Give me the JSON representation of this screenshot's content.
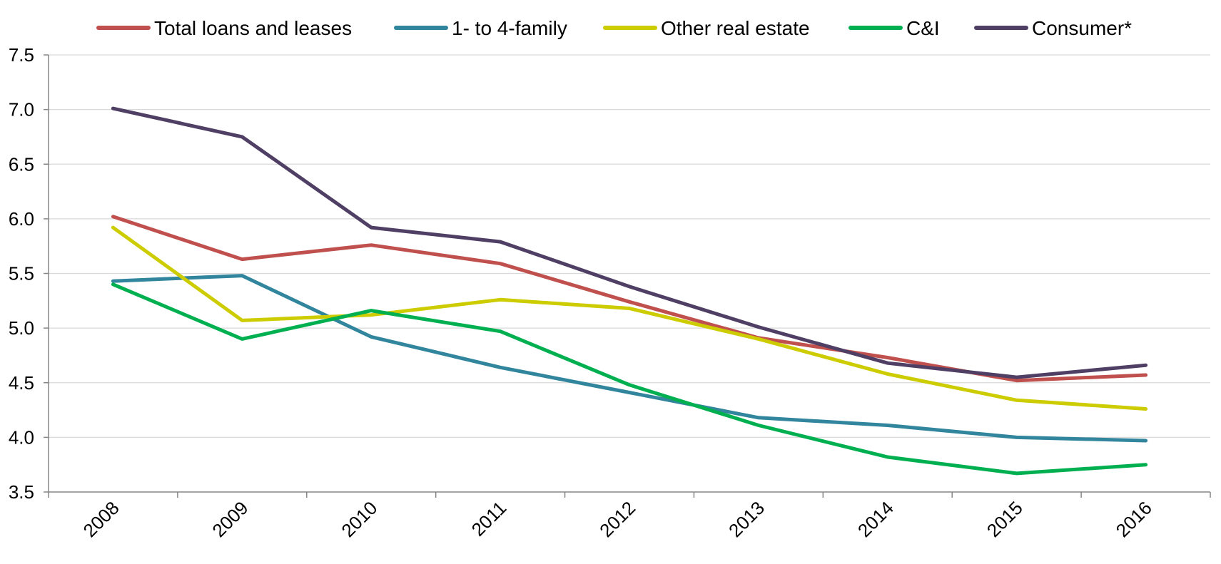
{
  "chart_data": {
    "type": "line",
    "title": "",
    "xlabel": "",
    "ylabel": "",
    "categories": [
      "2008",
      "2009",
      "2010",
      "2011",
      "2012",
      "2013",
      "2014",
      "2015",
      "2016"
    ],
    "ylim": [
      3.5,
      7.5
    ],
    "yticks": [
      "3.5",
      "4.0",
      "4.5",
      "5.0",
      "5.5",
      "6.0",
      "6.5",
      "7.0",
      "7.5"
    ],
    "grid": "horizontal",
    "legend_position": "top",
    "series": [
      {
        "name": "Total loans and leases",
        "color": "#c0504d",
        "values": [
          6.02,
          5.63,
          5.76,
          5.59,
          5.24,
          4.91,
          4.73,
          4.52,
          4.57
        ]
      },
      {
        "name": "1- to 4-family",
        "color": "#31859c",
        "values": [
          5.43,
          5.48,
          4.92,
          4.64,
          4.41,
          4.18,
          4.11,
          4.0,
          3.97
        ]
      },
      {
        "name": "Other real estate",
        "color": "#cccc00",
        "values": [
          5.92,
          5.07,
          5.12,
          5.26,
          5.18,
          4.9,
          4.58,
          4.34,
          4.26
        ]
      },
      {
        "name": "C&I",
        "color": "#00b050",
        "values": [
          5.4,
          4.9,
          5.16,
          4.97,
          4.48,
          4.11,
          3.82,
          3.67,
          3.75
        ]
      },
      {
        "name": "Consumer*",
        "color": "#4f3f64",
        "values": [
          7.01,
          6.75,
          5.92,
          5.79,
          5.38,
          5.01,
          4.68,
          4.55,
          4.66
        ]
      }
    ]
  }
}
